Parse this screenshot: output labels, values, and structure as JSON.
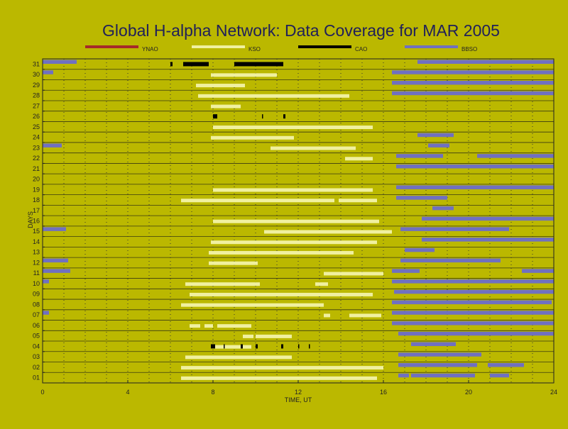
{
  "colors": {
    "background": "#bbb800",
    "ynao": "#a52a2a",
    "kso": "#f0f0a0",
    "cao": "#000000",
    "bbso": "#7070c0"
  },
  "chart_data": {
    "type": "timeline",
    "title": "Global H-alpha Network: Data Coverage for MAR 2005",
    "xlabel": "TIME, UT",
    "ylabel": "DAYS",
    "xlim": [
      0,
      24
    ],
    "x_ticks": [
      "0",
      "4",
      "8",
      "12",
      "16",
      "20",
      "24"
    ],
    "days": [
      "01",
      "02",
      "03",
      "04",
      "05",
      "06",
      "07",
      "08",
      "09",
      "10",
      "11",
      "12",
      "13",
      "14",
      "15",
      "16",
      "17",
      "18",
      "19",
      "20",
      "21",
      "22",
      "23",
      "24",
      "25",
      "26",
      "27",
      "28",
      "29",
      "30",
      "31"
    ],
    "grid": true,
    "legend_position": "top",
    "series": [
      {
        "name": "YNAO",
        "intervals": []
      },
      {
        "name": "KSO",
        "intervals": [
          {
            "day": 1,
            "start": 6.5,
            "end": 15.7
          },
          {
            "day": 2,
            "start": 6.5,
            "end": 16.0
          },
          {
            "day": 3,
            "start": 6.7,
            "end": 11.7
          },
          {
            "day": 4,
            "start": 7.9,
            "end": 9.8
          },
          {
            "day": 5,
            "start": 9.4,
            "end": 9.9
          },
          {
            "day": 5,
            "start": 10.0,
            "end": 11.7
          },
          {
            "day": 6,
            "start": 6.9,
            "end": 7.4
          },
          {
            "day": 6,
            "start": 7.6,
            "end": 8.0
          },
          {
            "day": 6,
            "start": 8.2,
            "end": 9.8
          },
          {
            "day": 7,
            "start": 13.2,
            "end": 13.5
          },
          {
            "day": 7,
            "start": 14.4,
            "end": 15.9
          },
          {
            "day": 8,
            "start": 6.5,
            "end": 13.2
          },
          {
            "day": 9,
            "start": 6.9,
            "end": 15.5
          },
          {
            "day": 10,
            "start": 6.7,
            "end": 10.2
          },
          {
            "day": 10,
            "start": 12.8,
            "end": 13.4
          },
          {
            "day": 11,
            "start": 13.2,
            "end": 16.0
          },
          {
            "day": 12,
            "start": 7.8,
            "end": 10.1
          },
          {
            "day": 13,
            "start": 7.8,
            "end": 14.6
          },
          {
            "day": 14,
            "start": 7.9,
            "end": 15.7
          },
          {
            "day": 15,
            "start": 10.4,
            "end": 16.4
          },
          {
            "day": 16,
            "start": 8.0,
            "end": 15.8
          },
          {
            "day": 18,
            "start": 6.5,
            "end": 13.7
          },
          {
            "day": 18,
            "start": 13.9,
            "end": 15.7
          },
          {
            "day": 19,
            "start": 8.0,
            "end": 15.5
          },
          {
            "day": 22,
            "start": 14.2,
            "end": 15.5
          },
          {
            "day": 23,
            "start": 10.7,
            "end": 14.7
          },
          {
            "day": 24,
            "start": 7.9,
            "end": 11.8
          },
          {
            "day": 25,
            "start": 8.0,
            "end": 15.5
          },
          {
            "day": 27,
            "start": 7.9,
            "end": 9.3
          },
          {
            "day": 28,
            "start": 7.3,
            "end": 14.4
          },
          {
            "day": 29,
            "start": 7.2,
            "end": 9.5
          },
          {
            "day": 30,
            "start": 7.9,
            "end": 11.0
          }
        ]
      },
      {
        "name": "CAO",
        "intervals": [
          {
            "day": 4,
            "start": 7.9,
            "end": 8.1
          },
          {
            "day": 4,
            "start": 8.5,
            "end": 8.55
          },
          {
            "day": 4,
            "start": 9.3,
            "end": 9.4
          },
          {
            "day": 4,
            "start": 10.0,
            "end": 10.1
          },
          {
            "day": 4,
            "start": 11.2,
            "end": 11.3
          },
          {
            "day": 4,
            "start": 12.0,
            "end": 12.05
          },
          {
            "day": 4,
            "start": 12.5,
            "end": 12.55
          },
          {
            "day": 26,
            "start": 8.0,
            "end": 8.2
          },
          {
            "day": 26,
            "start": 10.3,
            "end": 10.35
          },
          {
            "day": 26,
            "start": 11.3,
            "end": 11.4
          },
          {
            "day": 31,
            "start": 6.0,
            "end": 6.1
          },
          {
            "day": 31,
            "start": 6.6,
            "end": 7.8
          },
          {
            "day": 31,
            "start": 9.0,
            "end": 11.3
          }
        ]
      },
      {
        "name": "BBSO",
        "intervals": [
          {
            "day": 1,
            "start": 16.7,
            "end": 17.2
          },
          {
            "day": 1,
            "start": 17.3,
            "end": 20.3
          },
          {
            "day": 1,
            "start": 21.0,
            "end": 21.9
          },
          {
            "day": 2,
            "start": 16.7,
            "end": 20.4
          },
          {
            "day": 2,
            "start": 20.9,
            "end": 22.6
          },
          {
            "day": 3,
            "start": 16.7,
            "end": 20.6
          },
          {
            "day": 4,
            "start": 17.3,
            "end": 19.4
          },
          {
            "day": 5,
            "start": 16.7,
            "end": 24.0
          },
          {
            "day": 6,
            "start": 16.4,
            "end": 24.0
          },
          {
            "day": 7,
            "start": 0.0,
            "end": 0.3
          },
          {
            "day": 7,
            "start": 16.4,
            "end": 24.0
          },
          {
            "day": 8,
            "start": 16.4,
            "end": 23.9
          },
          {
            "day": 9,
            "start": 16.5,
            "end": 24.0
          },
          {
            "day": 10,
            "start": 0.0,
            "end": 0.3
          },
          {
            "day": 10,
            "start": 16.4,
            "end": 24.0
          },
          {
            "day": 11,
            "start": 0.0,
            "end": 1.3
          },
          {
            "day": 11,
            "start": 16.4,
            "end": 17.7
          },
          {
            "day": 11,
            "start": 22.5,
            "end": 24.0
          },
          {
            "day": 12,
            "start": 0.0,
            "end": 1.2
          },
          {
            "day": 12,
            "start": 16.8,
            "end": 21.5
          },
          {
            "day": 13,
            "start": 17.0,
            "end": 18.4
          },
          {
            "day": 14,
            "start": 17.8,
            "end": 24.0
          },
          {
            "day": 15,
            "start": 0.0,
            "end": 1.1
          },
          {
            "day": 15,
            "start": 16.8,
            "end": 21.9
          },
          {
            "day": 16,
            "start": 17.8,
            "end": 24.0
          },
          {
            "day": 17,
            "start": 18.3,
            "end": 19.3
          },
          {
            "day": 18,
            "start": 16.6,
            "end": 19.0
          },
          {
            "day": 19,
            "start": 16.6,
            "end": 24.0
          },
          {
            "day": 21,
            "start": 16.6,
            "end": 24.0
          },
          {
            "day": 22,
            "start": 16.6,
            "end": 18.8
          },
          {
            "day": 22,
            "start": 20.4,
            "end": 24.0
          },
          {
            "day": 23,
            "start": 0.0,
            "end": 0.9
          },
          {
            "day": 23,
            "start": 18.1,
            "end": 19.1
          },
          {
            "day": 24,
            "start": 17.6,
            "end": 19.3
          },
          {
            "day": 28,
            "start": 16.4,
            "end": 24.0
          },
          {
            "day": 29,
            "start": 16.4,
            "end": 24.0
          },
          {
            "day": 30,
            "start": 0.0,
            "end": 0.5
          },
          {
            "day": 30,
            "start": 16.4,
            "end": 24.0
          },
          {
            "day": 31,
            "start": 0.0,
            "end": 1.6
          },
          {
            "day": 31,
            "start": 17.6,
            "end": 24.0
          }
        ]
      }
    ]
  }
}
